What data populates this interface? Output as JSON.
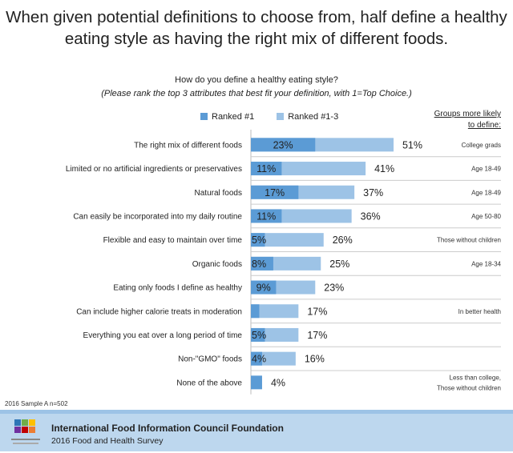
{
  "chart_data": {
    "type": "bar",
    "orientation": "horizontal",
    "title": "When given potential definitions to choose from, half define a healthy eating style as having the right mix of different foods.",
    "subtitle": "How do you define a healthy eating style?",
    "subtitle_note": "(Please rank the top 3 attributes that best fit your definition, with 1=Top Choice.)",
    "groups_header": "Groups more likely to define:",
    "series": [
      {
        "name": "Ranked #1",
        "color": "#5b9bd5"
      },
      {
        "name": "Ranked #1-3",
        "color": "#9dc3e6"
      }
    ],
    "legend_placement": "top",
    "xlim": [
      0,
      60
    ],
    "grid": false,
    "rows": [
      {
        "category": "The right mix of different foods",
        "ranked1": 23,
        "ranked1_label": "23%",
        "ranked13": 51,
        "ranked13_label": "51%",
        "group": "College grads"
      },
      {
        "category": "Limited or no artificial ingredients or preservatives",
        "ranked1": 11,
        "ranked1_label": "11%",
        "ranked13": 41,
        "ranked13_label": "41%",
        "group": "Age 18-49"
      },
      {
        "category": "Natural foods",
        "ranked1": 17,
        "ranked1_label": "17%",
        "ranked13": 37,
        "ranked13_label": "37%",
        "group": "Age 18-49"
      },
      {
        "category": "Can easily be incorporated into my daily routine",
        "ranked1": 11,
        "ranked1_label": "11%",
        "ranked13": 36,
        "ranked13_label": "36%",
        "group": "Age 50-80"
      },
      {
        "category": "Flexible and easy to maintain over time",
        "ranked1": 5,
        "ranked1_label": "5%",
        "ranked13": 26,
        "ranked13_label": "26%",
        "group": "Those without children"
      },
      {
        "category": "Organic foods",
        "ranked1": 8,
        "ranked1_label": "8%",
        "ranked13": 25,
        "ranked13_label": "25%",
        "group": "Age 18-34"
      },
      {
        "category": "Eating only foods I define as healthy",
        "ranked1": 9,
        "ranked1_label": "9%",
        "ranked13": 23,
        "ranked13_label": "23%",
        "group": ""
      },
      {
        "category": "Can include higher calorie treats in moderation",
        "ranked1": 3,
        "ranked1_label": "",
        "ranked13": 17,
        "ranked13_label": "17%",
        "group": "In better health"
      },
      {
        "category": "Everything you eat over a long period of time",
        "ranked1": 5,
        "ranked1_label": "5%",
        "ranked13": 17,
        "ranked13_label": "17%",
        "group": ""
      },
      {
        "category": "Non-\"GMO\" foods",
        "ranked1": 4,
        "ranked1_label": "4%",
        "ranked13": 16,
        "ranked13_label": "16%",
        "group": ""
      },
      {
        "category": "None of the above",
        "ranked1": 4,
        "ranked1_label": "",
        "ranked13": 4,
        "ranked13_label": "4%",
        "group": "Less than college, Those without children"
      }
    ]
  },
  "sample": "2016 Sample A n=502",
  "footer": {
    "org": "International Food Information Council Foundation",
    "survey": "2016 Food and Health Survey",
    "logo_text": "International Food Information Council Foundation"
  }
}
